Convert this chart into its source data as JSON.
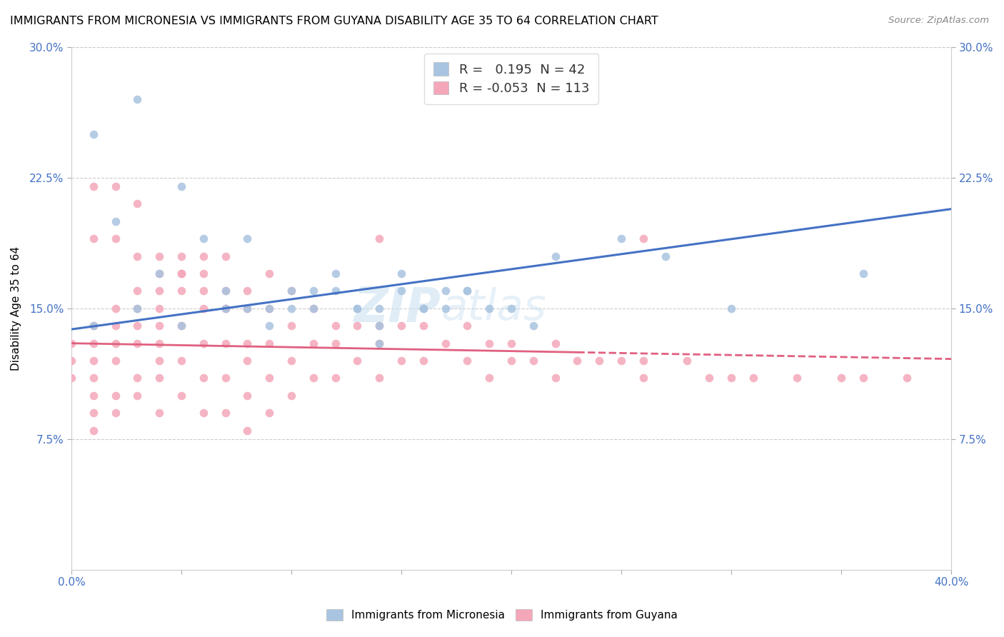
{
  "title": "IMMIGRANTS FROM MICRONESIA VS IMMIGRANTS FROM GUYANA DISABILITY AGE 35 TO 64 CORRELATION CHART",
  "source": "Source: ZipAtlas.com",
  "ylabel": "Disability Age 35 to 64",
  "xlim": [
    0.0,
    0.4
  ],
  "ylim": [
    0.0,
    0.3
  ],
  "ytick_labels": [
    "7.5%",
    "15.0%",
    "22.5%",
    "30.0%"
  ],
  "ytick_values": [
    0.075,
    0.15,
    0.225,
    0.3
  ],
  "micronesia_color": "#a8c4e0",
  "guyana_color": "#f4a7b9",
  "micronesia_line_color": "#4472c4",
  "guyana_line_color": "#e06080",
  "label_color": "#4472c4",
  "R_micronesia": 0.195,
  "N_micronesia": 42,
  "R_guyana": -0.053,
  "N_guyana": 113,
  "legend_label_micronesia": "Immigrants from Micronesia",
  "legend_label_guyana": "Immigrants from Guyana",
  "mic_line_x0": 0.0,
  "mic_line_y0": 0.138,
  "mic_line_x1": 0.4,
  "mic_line_y1": 0.207,
  "guy_line_x0": 0.0,
  "guy_line_y0": 0.13,
  "guy_line_x1": 0.4,
  "guy_line_y1": 0.121,
  "guy_line_solid_end": 0.23,
  "micronesia_scatter_x": [
    0.02,
    0.04,
    0.01,
    0.03,
    0.05,
    0.06,
    0.07,
    0.08,
    0.09,
    0.1,
    0.11,
    0.12,
    0.13,
    0.14,
    0.15,
    0.16,
    0.17,
    0.18,
    0.2,
    0.22,
    0.25,
    0.27,
    0.01,
    0.03,
    0.08,
    0.1,
    0.12,
    0.14,
    0.16,
    0.09,
    0.11,
    0.36,
    0.14,
    0.05,
    0.07,
    0.13,
    0.19,
    0.21,
    0.3,
    0.18,
    0.15,
    0.17
  ],
  "micronesia_scatter_y": [
    0.2,
    0.17,
    0.25,
    0.27,
    0.22,
    0.19,
    0.16,
    0.15,
    0.15,
    0.15,
    0.16,
    0.17,
    0.15,
    0.14,
    0.16,
    0.15,
    0.15,
    0.16,
    0.15,
    0.18,
    0.19,
    0.18,
    0.14,
    0.15,
    0.19,
    0.16,
    0.16,
    0.15,
    0.15,
    0.14,
    0.15,
    0.17,
    0.13,
    0.14,
    0.15,
    0.15,
    0.15,
    0.14,
    0.15,
    0.16,
    0.17,
    0.16
  ],
  "guyana_scatter_x": [
    0.0,
    0.0,
    0.0,
    0.01,
    0.01,
    0.01,
    0.01,
    0.01,
    0.01,
    0.01,
    0.02,
    0.02,
    0.02,
    0.02,
    0.02,
    0.02,
    0.03,
    0.03,
    0.03,
    0.03,
    0.03,
    0.03,
    0.04,
    0.04,
    0.04,
    0.04,
    0.04,
    0.04,
    0.04,
    0.04,
    0.05,
    0.05,
    0.05,
    0.05,
    0.05,
    0.05,
    0.06,
    0.06,
    0.06,
    0.06,
    0.06,
    0.06,
    0.07,
    0.07,
    0.07,
    0.07,
    0.07,
    0.07,
    0.08,
    0.08,
    0.08,
    0.08,
    0.08,
    0.09,
    0.09,
    0.09,
    0.09,
    0.09,
    0.1,
    0.1,
    0.1,
    0.1,
    0.11,
    0.11,
    0.11,
    0.12,
    0.12,
    0.12,
    0.13,
    0.13,
    0.14,
    0.14,
    0.14,
    0.15,
    0.15,
    0.16,
    0.16,
    0.17,
    0.18,
    0.18,
    0.19,
    0.19,
    0.2,
    0.2,
    0.21,
    0.22,
    0.22,
    0.23,
    0.24,
    0.25,
    0.26,
    0.26,
    0.28,
    0.29,
    0.3,
    0.31,
    0.33,
    0.35,
    0.36,
    0.38,
    0.01,
    0.02,
    0.03,
    0.01,
    0.02,
    0.03,
    0.04,
    0.05,
    0.06,
    0.07,
    0.08,
    0.14,
    0.26
  ],
  "guyana_scatter_y": [
    0.13,
    0.12,
    0.11,
    0.14,
    0.13,
    0.12,
    0.11,
    0.1,
    0.09,
    0.08,
    0.15,
    0.14,
    0.13,
    0.12,
    0.1,
    0.09,
    0.16,
    0.15,
    0.14,
    0.13,
    0.11,
    0.1,
    0.17,
    0.16,
    0.15,
    0.14,
    0.13,
    0.12,
    0.11,
    0.09,
    0.18,
    0.17,
    0.16,
    0.14,
    0.12,
    0.1,
    0.18,
    0.17,
    0.15,
    0.13,
    0.11,
    0.09,
    0.18,
    0.16,
    0.15,
    0.13,
    0.11,
    0.09,
    0.16,
    0.15,
    0.13,
    0.12,
    0.1,
    0.17,
    0.15,
    0.13,
    0.11,
    0.09,
    0.16,
    0.14,
    0.12,
    0.1,
    0.15,
    0.13,
    0.11,
    0.14,
    0.13,
    0.11,
    0.14,
    0.12,
    0.14,
    0.13,
    0.11,
    0.14,
    0.12,
    0.14,
    0.12,
    0.13,
    0.14,
    0.12,
    0.13,
    0.11,
    0.13,
    0.12,
    0.12,
    0.13,
    0.11,
    0.12,
    0.12,
    0.12,
    0.11,
    0.12,
    0.12,
    0.11,
    0.11,
    0.11,
    0.11,
    0.11,
    0.11,
    0.11,
    0.22,
    0.22,
    0.21,
    0.19,
    0.19,
    0.18,
    0.18,
    0.17,
    0.16,
    0.15,
    0.08,
    0.19,
    0.19
  ]
}
